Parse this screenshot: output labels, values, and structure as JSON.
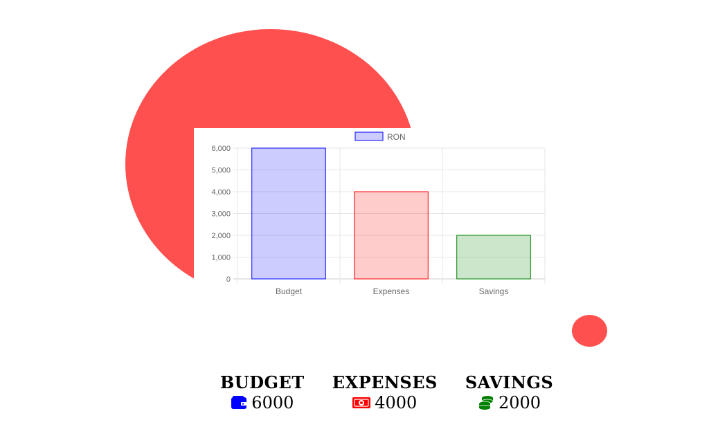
{
  "chart_data": {
    "type": "bar",
    "categories": [
      "Budget",
      "Expenses",
      "Savings"
    ],
    "series": [
      {
        "name": "RON",
        "values": [
          6000,
          4000,
          2000
        ]
      }
    ],
    "bar_fill_colors": [
      "rgba(0,0,255,0.2)",
      "rgba(255,0,0,0.2)",
      "rgba(0,128,0,0.2)"
    ],
    "bar_border_colors": [
      "#0000ff",
      "#ff0000",
      "#008000"
    ],
    "ylim": [
      0,
      6000
    ],
    "yticks": [
      0,
      1000,
      2000,
      3000,
      4000,
      5000,
      6000
    ],
    "ytick_labels": [
      "0",
      "1,000",
      "2,000",
      "3,000",
      "4,000",
      "5,000",
      "6,000"
    ],
    "legend": {
      "label": "RON",
      "position": "top",
      "fill": "rgba(0,0,255,0.2)",
      "border": "#0000ff"
    },
    "grid": true,
    "title": "",
    "xlabel": "",
    "ylabel": ""
  },
  "stats": [
    {
      "title": "BUDGET",
      "value": "6000",
      "icon": "wallet-icon",
      "color": "#0000ff"
    },
    {
      "title": "EXPENSES",
      "value": "4000",
      "icon": "money-bill-icon",
      "color": "#ff0000"
    },
    {
      "title": "SAVINGS",
      "value": "2000",
      "icon": "coins-icon",
      "color": "#008000"
    }
  ],
  "decor_color": "#ff5050"
}
